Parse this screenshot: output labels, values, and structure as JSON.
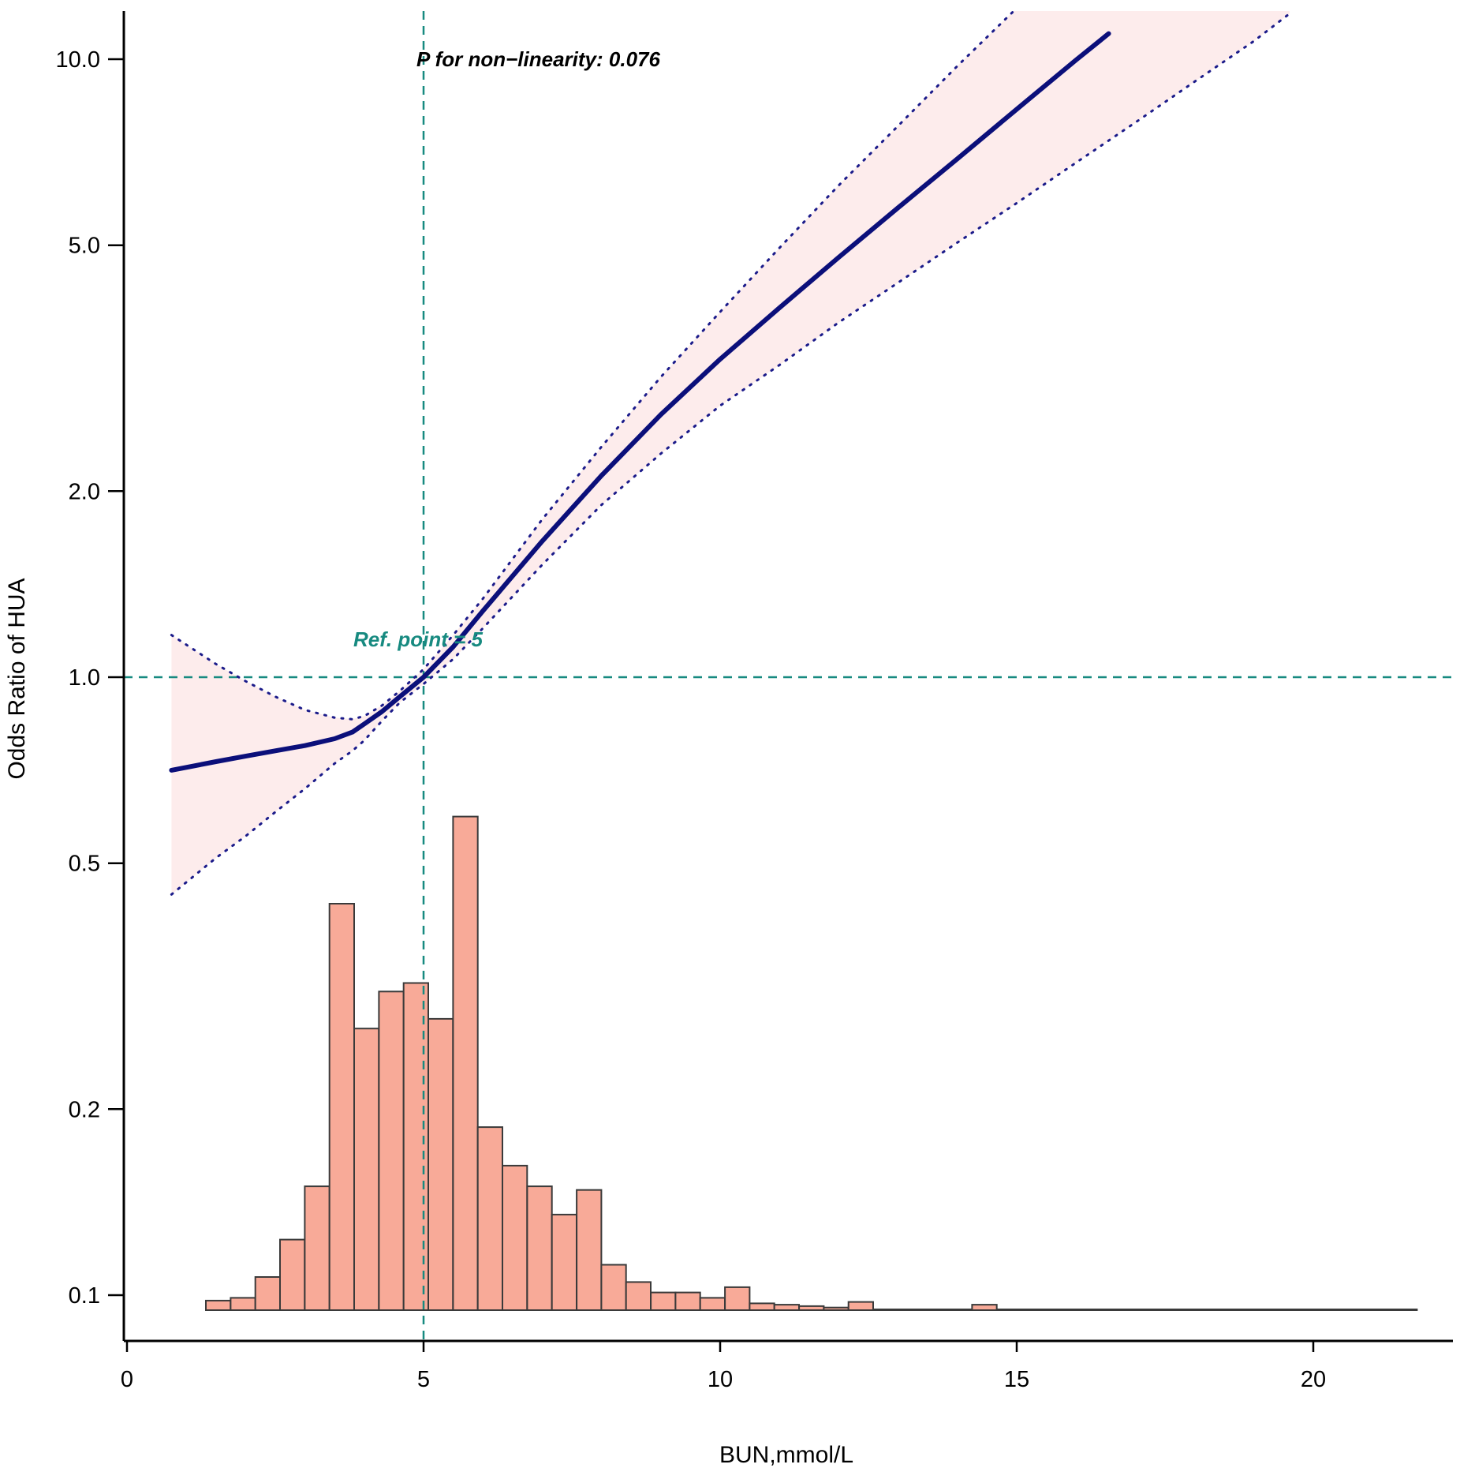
{
  "chart_data": {
    "type": "line",
    "title": "",
    "xlabel": "BUN,mmol/L",
    "ylabel": "Odds Ratio of HUA",
    "xlim": [
      0,
      22.5
    ],
    "ylim": [
      0.073,
      12.0
    ],
    "y_scale": "log",
    "x_ticks": [
      0,
      5,
      10,
      15,
      20
    ],
    "x_tick_labels": [
      "0",
      "5",
      "10",
      "15",
      "20"
    ],
    "y_ticks": [
      0.1,
      0.2,
      0.5,
      1.0,
      2.0,
      5.0,
      10.0
    ],
    "y_tick_labels": [
      "0.1",
      "0.2",
      "0.5",
      "1.0",
      "2.0",
      "5.0",
      "10.0"
    ],
    "reference": {
      "x": 5,
      "y": 1.0,
      "label": "Ref. point = 5"
    },
    "annotation": "P for non−linearity: 0.076",
    "colors": {
      "curve": "#0b0f7a",
      "ci_fill": "#fdecec",
      "ci_line": "#1b1b8a",
      "ref_line": "#178a80",
      "ref_text": "#178a80",
      "hist_fill": "#f8aa98",
      "hist_edge": "#3a3a3a",
      "annotation_text": "#000000"
    },
    "series": [
      {
        "name": "Odds Ratio",
        "x": [
          0.75,
          1.5,
          2.0,
          2.5,
          3.0,
          3.5,
          3.8,
          4.0,
          4.3,
          4.6,
          5.0,
          5.5,
          6.0,
          7.0,
          8.0,
          9.0,
          10.0,
          11.0,
          12.0,
          13.0,
          14.0,
          15.0,
          16.0,
          16.55
        ],
        "y": [
          0.707,
          0.73,
          0.745,
          0.76,
          0.775,
          0.795,
          0.815,
          0.84,
          0.88,
          0.93,
          1.0,
          1.12,
          1.28,
          1.66,
          2.12,
          2.66,
          3.27,
          3.96,
          4.78,
          5.75,
          6.9,
          8.3,
          9.97,
          11.0
        ]
      },
      {
        "name": "95% CI upper",
        "x": [
          0.75,
          1.5,
          2.0,
          2.5,
          3.0,
          3.5,
          3.8,
          4.0,
          4.3,
          4.6,
          5.0,
          5.5,
          6.0,
          7.0,
          8.0,
          9.0,
          10.0,
          11.0,
          12.0,
          13.0,
          14.0,
          14.95
        ],
        "y": [
          1.17,
          1.05,
          0.985,
          0.93,
          0.885,
          0.86,
          0.855,
          0.865,
          0.9,
          0.95,
          1.03,
          1.17,
          1.34,
          1.8,
          2.36,
          3.06,
          3.9,
          4.95,
          6.25,
          7.8,
          9.75,
          12.0
        ]
      },
      {
        "name": "95% CI lower",
        "x": [
          0.75,
          1.5,
          2.0,
          2.5,
          3.0,
          3.5,
          3.8,
          4.0,
          4.3,
          4.6,
          5.0,
          5.5,
          6.0,
          7.0,
          8.0,
          9.0,
          10.0,
          11.0,
          12.0,
          13.0,
          14.0,
          15.0,
          16.0,
          17.0,
          18.0,
          19.0,
          19.6
        ],
        "y": [
          0.445,
          0.51,
          0.553,
          0.605,
          0.66,
          0.725,
          0.76,
          0.79,
          0.85,
          0.91,
          0.975,
          1.07,
          1.2,
          1.52,
          1.9,
          2.3,
          2.75,
          3.2,
          3.75,
          4.35,
          5.05,
          5.85,
          6.8,
          7.9,
          9.2,
          10.7,
          11.85
        ]
      }
    ],
    "histogram": {
      "bin_width": 0.4167,
      "bin_start": 1.33,
      "counts": [
        0.098,
        0.099,
        0.107,
        0.123,
        0.15,
        0.43,
        0.27,
        0.31,
        0.32,
        0.28,
        0.595,
        0.187,
        0.162,
        0.15,
        0.135,
        0.148,
        0.112,
        0.105,
        0.101,
        0.101,
        0.099,
        0.103,
        0.097,
        0.0965,
        0.096,
        0.0955,
        0.0975,
        0.0945,
        0.0945,
        0.094,
        0.094,
        0.0965,
        0.094,
        0.094,
        0.094,
        0.094,
        0.094,
        0.094,
        0.0937,
        0.0937,
        0.0935,
        0.0935,
        0.0934,
        0.0933,
        0.0933,
        0.0934,
        0.0933,
        0.0932,
        0.0932
      ]
    }
  }
}
